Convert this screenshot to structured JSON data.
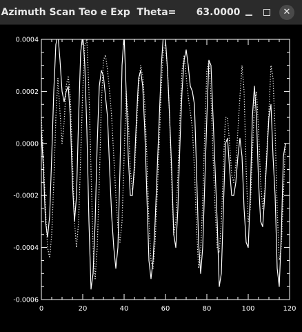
{
  "window": {
    "title": "Azimuth Scan Teo e Exp  Theta=      63.0000",
    "buttons": {
      "minimize_icon": "minimize-icon",
      "maximize_icon": "maximize-icon",
      "close_icon": "close-icon",
      "close_glyph": "✕"
    }
  },
  "colors": {
    "background": "#000000",
    "foreground": "#ffffff",
    "titlebar": "#2b2b2b"
  },
  "chart_data": {
    "type": "line",
    "title": "",
    "xlabel": "",
    "ylabel": "",
    "xlim": [
      0,
      120
    ],
    "ylim": [
      -0.0006,
      0.0004
    ],
    "grid": false,
    "x_ticks": [
      0,
      20,
      40,
      60,
      80,
      100,
      120
    ],
    "x_tick_labels": [
      "0",
      "20",
      "40",
      "60",
      "80",
      "100",
      "120"
    ],
    "y_ticks": [
      -0.0006,
      -0.0004,
      -0.0002,
      0.0,
      0.0002,
      0.0004
    ],
    "y_tick_labels": [
      "-0.0006",
      "-0.0004",
      "-0.0002",
      "0.0000",
      "0.0002",
      "0.0004"
    ],
    "series": [
      {
        "style": "solid",
        "x": [
          0,
          1,
          2,
          3,
          4,
          5,
          6,
          7,
          8,
          9,
          10,
          11,
          12,
          13,
          14,
          15,
          16,
          17,
          18,
          19,
          20,
          21,
          22,
          23,
          24,
          25,
          26,
          27,
          28,
          29,
          30,
          31,
          32,
          33,
          34,
          35,
          36,
          37,
          38,
          39,
          40,
          41,
          42,
          43,
          44,
          45,
          46,
          47,
          48,
          49,
          50,
          51,
          52,
          53,
          54,
          55,
          56,
          57,
          58,
          59,
          60,
          61,
          62,
          63,
          64,
          65,
          66,
          67,
          68,
          69,
          70,
          71,
          72,
          73,
          74,
          75,
          76,
          77,
          78,
          79,
          80,
          81,
          82,
          83,
          84,
          85,
          86,
          87,
          88,
          89,
          90,
          91,
          92,
          93,
          94,
          95,
          96,
          97,
          98,
          99,
          100,
          101,
          102,
          103,
          104,
          105,
          106,
          107,
          108,
          109,
          110,
          111,
          112,
          113,
          114,
          115,
          116,
          117,
          118
        ],
        "y": [
          5e-05,
          -0.0001,
          -0.0003,
          -0.00036,
          -0.00028,
          -5e-05,
          0.0002,
          0.00038,
          0.00042,
          0.00032,
          0.0002,
          0.00016,
          0.0002,
          0.00022,
          0.0001,
          -0.00015,
          -0.0003,
          -0.0002,
          0.0001,
          0.00035,
          0.00042,
          0.0003,
          5e-05,
          -0.0003,
          -0.00056,
          -0.0005,
          -0.0003,
          0.0,
          0.00022,
          0.00028,
          0.00026,
          0.00018,
          0.0001,
          -0.0001,
          -0.00028,
          -0.0004,
          -0.00048,
          -0.0004,
          -0.0001,
          0.0003,
          0.00042,
          0.0002,
          -5e-05,
          -0.0002,
          -0.0002,
          -8e-05,
          0.0001,
          0.00025,
          0.00028,
          0.00022,
          5e-05,
          -0.0002,
          -0.00045,
          -0.00052,
          -0.00045,
          -0.0003,
          -0.0001,
          0.0001,
          0.0003,
          0.00042,
          0.0004,
          0.00028,
          0.0001,
          -0.0001,
          -0.00035,
          -0.0004,
          -0.00025,
          0.0,
          0.0002,
          0.00032,
          0.00036,
          0.0003,
          0.00022,
          0.0002,
          0.00015,
          -0.0001,
          -0.00038,
          -0.0005,
          -0.0004,
          -0.00015,
          0.0001,
          0.00032,
          0.0003,
          0.0001,
          -0.0001,
          -0.0003,
          -0.00055,
          -0.0005,
          -0.00025,
          0.0,
          2e-05,
          -0.0001,
          -0.0002,
          -0.0002,
          -0.00015,
          -5e-05,
          2e-05,
          -5e-05,
          -0.00025,
          -0.00038,
          -0.0004,
          -0.0002,
          0.0001,
          0.00022,
          0.0001,
          -0.00015,
          -0.0003,
          -0.00032,
          -0.0002,
          -5e-05,
          0.0001,
          0.00015,
          -5e-05,
          -0.0002,
          -0.00048,
          -0.00055,
          -0.00035,
          -5e-05,
          0.0
        ]
      },
      {
        "style": "dotted",
        "x": [
          0,
          1,
          2,
          3,
          4,
          5,
          6,
          7,
          8,
          9,
          10,
          11,
          12,
          13,
          14,
          15,
          16,
          17,
          18,
          19,
          20,
          21,
          22,
          23,
          24,
          25,
          26,
          27,
          28,
          29,
          30,
          31,
          32,
          33,
          34,
          35,
          36,
          37,
          38,
          39,
          40,
          41,
          42,
          43,
          44,
          45,
          46,
          47,
          48,
          49,
          50,
          51,
          52,
          53,
          54,
          55,
          56,
          57,
          58,
          59,
          60,
          61,
          62,
          63,
          64,
          65,
          66,
          67,
          68,
          69,
          70,
          71,
          72,
          73,
          74,
          75,
          76,
          77,
          78,
          79,
          80,
          81,
          82,
          83,
          84,
          85,
          86,
          87,
          88,
          89,
          90,
          91,
          92,
          93,
          94,
          95,
          96,
          97,
          98,
          99,
          100,
          101,
          102,
          103,
          104,
          105,
          106,
          107,
          108,
          109,
          110,
          111,
          112,
          113,
          114,
          115,
          116,
          117,
          118
        ],
        "y": [
          0.0001,
          -5e-05,
          -0.00025,
          -0.0004,
          -0.00044,
          -0.00035,
          -0.00015,
          0.0001,
          0.00025,
          0.00012,
          0.0,
          8e-05,
          0.00022,
          0.00026,
          0.00018,
          -5e-05,
          -0.0003,
          -0.0004,
          -0.0003,
          -5e-05,
          0.0002,
          0.00038,
          0.0004,
          0.0002,
          -0.0001,
          -0.0004,
          -0.00052,
          -0.0004,
          -0.00015,
          0.00015,
          0.00032,
          0.00034,
          0.00028,
          0.0002,
          0.0001,
          -5e-05,
          -0.0002,
          -0.00032,
          -0.00038,
          -0.0003,
          -5e-05,
          0.0002,
          0.0001,
          -0.0001,
          -0.00018,
          -0.00012,
          5e-05,
          0.00022,
          0.0003,
          0.00026,
          0.00015,
          -5e-05,
          -0.0003,
          -0.00045,
          -0.00048,
          -0.00038,
          -0.0002,
          0.0,
          0.00022,
          0.00036,
          0.00038,
          0.00028,
          0.0001,
          -0.00015,
          -0.00035,
          -0.0003,
          -0.00012,
          0.0001,
          0.00028,
          0.00034,
          0.00026,
          0.00018,
          0.00012,
          6e-05,
          -0.0001,
          -0.00032,
          -0.00048,
          -0.00042,
          -0.00022,
          5e-05,
          0.00028,
          0.00032,
          0.00018,
          -5e-05,
          -0.00025,
          -0.0004,
          -0.00042,
          -0.0003,
          -8e-05,
          0.0001,
          0.0001,
          0.0,
          -0.00012,
          -0.00015,
          -8e-05,
          5e-05,
          0.00018,
          0.0003,
          0.0002,
          -0.0001,
          -0.0003,
          -0.00025,
          -5e-05,
          0.00015,
          0.0002,
          5e-05,
          -0.00015,
          -0.00025,
          -0.00018,
          -2e-05,
          0.00012,
          0.0003,
          0.00025,
          5e-05,
          -0.00025,
          -0.00045,
          -0.0004,
          -0.0002,
          0.0
        ]
      }
    ]
  }
}
